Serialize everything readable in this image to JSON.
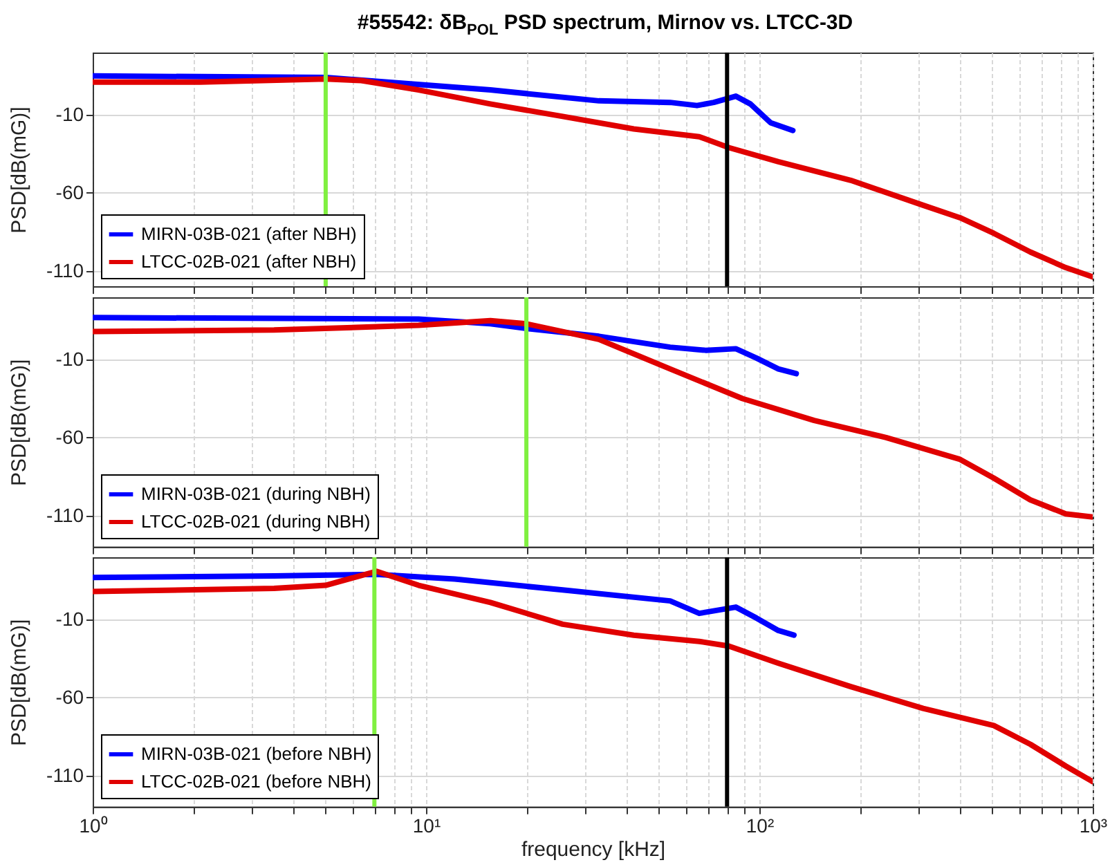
{
  "chart_data": [
    {
      "type": "line",
      "title": "#55542: δB$_{POL}$ PSD spectrum, Mirnov vs. LTCC-3D",
      "ylabel": "PSD[dB(mG)]",
      "log": "x",
      "xlim": [
        1,
        1000
      ],
      "ylim": [
        -120,
        30
      ],
      "yticks": [
        -110,
        -60,
        -10
      ],
      "xticks": [
        {
          "value": 1,
          "label": null
        },
        {
          "value": 2,
          "label": null
        },
        {
          "value": 3,
          "label": null
        },
        {
          "value": 4,
          "label": null
        },
        {
          "value": 5,
          "label": null
        },
        {
          "value": 6,
          "label": null
        },
        {
          "value": 7,
          "label": null
        },
        {
          "value": 8,
          "label": null
        },
        {
          "value": 9,
          "label": null
        },
        {
          "value": 10,
          "label": null
        },
        {
          "value": 20,
          "label": null
        },
        {
          "value": 30,
          "label": null
        },
        {
          "value": 40,
          "label": null
        },
        {
          "value": 50,
          "label": null
        },
        {
          "value": 60,
          "label": null
        },
        {
          "value": 70,
          "label": null
        },
        {
          "value": 80,
          "label": null
        },
        {
          "value": 90,
          "label": null
        },
        {
          "value": 100,
          "label": null
        },
        {
          "value": 200,
          "label": null
        },
        {
          "value": 300,
          "label": null
        },
        {
          "value": 400,
          "label": null
        },
        {
          "value": 500,
          "label": null
        },
        {
          "value": 600,
          "label": null
        },
        {
          "value": 700,
          "label": null
        },
        {
          "value": 800,
          "label": null
        },
        {
          "value": 900,
          "label": null
        },
        {
          "value": 1000,
          "label": null
        }
      ],
      "tick_labels": "y",
      "grid": true,
      "legend": "bottom left",
      "series": [
        {
          "name": "MIRN-03B-021 (after NBH)",
          "color": "#0000ff",
          "x": [
            1,
            5,
            15.6,
            33,
            54,
            65,
            73,
            85,
            94,
            108,
            126
          ],
          "values": [
            15,
            14,
            6,
            -1,
            -2,
            -4,
            -2,
            2,
            -3,
            -15,
            -20
          ]
        },
        {
          "name": "LTCC-02B-021 (after NBH)",
          "color": "#e00000",
          "x": [
            1,
            2.1,
            5,
            6.4,
            9.5,
            15.6,
            25.7,
            42,
            66,
            81,
            114,
            188,
            310,
            400,
            505,
            650,
            830,
            1000
          ],
          "values": [
            11,
            11,
            13,
            12,
            6,
            -3,
            -11,
            -19,
            -24,
            -31,
            -40,
            -52,
            -68,
            -76,
            -86,
            -98,
            -108,
            -114
          ]
        }
      ],
      "ref_lines": [
        {
          "axis": "x",
          "value": 5,
          "color": "#80f040"
        },
        {
          "axis": "x",
          "value": 80,
          "color": "#000000"
        }
      ]
    },
    {
      "type": "line",
      "ylabel": "PSD[dB(mG)]",
      "log": "x",
      "xlim": [
        1,
        1000
      ],
      "ylim": [
        -130,
        30
      ],
      "yticks": [
        -110,
        -60,
        -10
      ],
      "xticks": [
        {
          "value": 1,
          "label": null
        },
        {
          "value": 2,
          "label": null
        },
        {
          "value": 3,
          "label": null
        },
        {
          "value": 4,
          "label": null
        },
        {
          "value": 5,
          "label": null
        },
        {
          "value": 6,
          "label": null
        },
        {
          "value": 7,
          "label": null
        },
        {
          "value": 8,
          "label": null
        },
        {
          "value": 9,
          "label": null
        },
        {
          "value": 10,
          "label": null
        },
        {
          "value": 20,
          "label": null
        },
        {
          "value": 30,
          "label": null
        },
        {
          "value": 40,
          "label": null
        },
        {
          "value": 50,
          "label": null
        },
        {
          "value": 60,
          "label": null
        },
        {
          "value": 70,
          "label": null
        },
        {
          "value": 80,
          "label": null
        },
        {
          "value": 90,
          "label": null
        },
        {
          "value": 100,
          "label": null
        },
        {
          "value": 200,
          "label": null
        },
        {
          "value": 300,
          "label": null
        },
        {
          "value": 400,
          "label": null
        },
        {
          "value": 500,
          "label": null
        },
        {
          "value": 600,
          "label": null
        },
        {
          "value": 700,
          "label": null
        },
        {
          "value": 800,
          "label": null
        },
        {
          "value": 900,
          "label": null
        },
        {
          "value": 1000,
          "label": null
        }
      ],
      "tick_labels": "y",
      "grid": true,
      "legend": "bottom left",
      "series": [
        {
          "name": "MIRN-03B-021 (during NBH)",
          "color": "#0000ff",
          "x": [
            1,
            9.5,
            15.6,
            20,
            33,
            54,
            69,
            85,
            98,
            114,
            129
          ],
          "values": [
            17,
            16,
            13,
            10,
            5,
            -2,
            -4,
            -3,
            -9,
            -16,
            -19
          ]
        },
        {
          "name": "LTCC-02B-021 (during NBH)",
          "color": "#e00000",
          "x": [
            1,
            3.5,
            9.5,
            15.6,
            20,
            33,
            54,
            89,
            146,
            240,
            400,
            505,
            650,
            830,
            1000
          ],
          "values": [
            8,
            9,
            12,
            15,
            13,
            3,
            -16,
            -35,
            -49,
            -60,
            -74,
            -86,
            -100,
            -109,
            -111
          ]
        }
      ],
      "ref_lines": [
        {
          "axis": "x",
          "value": 20,
          "color": "#80f040"
        }
      ]
    },
    {
      "type": "line",
      "xlabel": "frequency [kHz]",
      "ylabel": "PSD[dB(mG)]",
      "log": "x",
      "xlim": [
        1,
        1000
      ],
      "ylim": [
        -130,
        30
      ],
      "yticks": [
        -110,
        -60,
        -10
      ],
      "xticks": [
        {
          "value": 1,
          "label": "10⁰"
        },
        {
          "value": 2,
          "label": null
        },
        {
          "value": 3,
          "label": null
        },
        {
          "value": 4,
          "label": null
        },
        {
          "value": 5,
          "label": null
        },
        {
          "value": 6,
          "label": null
        },
        {
          "value": 7,
          "label": null
        },
        {
          "value": 8,
          "label": null
        },
        {
          "value": 9,
          "label": null
        },
        {
          "value": 10,
          "label": "10¹"
        },
        {
          "value": 20,
          "label": null
        },
        {
          "value": 30,
          "label": null
        },
        {
          "value": 40,
          "label": null
        },
        {
          "value": 50,
          "label": null
        },
        {
          "value": 60,
          "label": null
        },
        {
          "value": 70,
          "label": null
        },
        {
          "value": 80,
          "label": null
        },
        {
          "value": 90,
          "label": null
        },
        {
          "value": 100,
          "label": "10²"
        },
        {
          "value": 200,
          "label": null
        },
        {
          "value": 300,
          "label": null
        },
        {
          "value": 400,
          "label": null
        },
        {
          "value": 500,
          "label": null
        },
        {
          "value": 600,
          "label": null
        },
        {
          "value": 700,
          "label": null
        },
        {
          "value": 800,
          "label": null
        },
        {
          "value": 900,
          "label": null
        },
        {
          "value": 1000,
          "label": "10³"
        }
      ],
      "grid": true,
      "legend": "bottom left",
      "series": [
        {
          "name": "MIRN-03B-021 (before NBH)",
          "color": "#0000ff",
          "x": [
            1,
            3.5,
            7.1,
            12.2,
            25.7,
            54,
            66,
            85,
            98,
            114,
            127
          ],
          "values": [
            17,
            18,
            19,
            16,
            9,
            2,
            -6,
            -2,
            -9,
            -17,
            -20
          ]
        },
        {
          "name": "LTCC-02B-021 (before NBH)",
          "color": "#e00000",
          "x": [
            1,
            3.5,
            5,
            7.1,
            9.5,
            15.6,
            25.7,
            42,
            66,
            81,
            114,
            188,
            310,
            505,
            650,
            830,
            1000
          ],
          "values": [
            8,
            10,
            12,
            21,
            12,
            1,
            -13,
            -20,
            -24,
            -27,
            -38,
            -53,
            -67,
            -78,
            -90,
            -104,
            -114
          ]
        }
      ],
      "ref_lines": [
        {
          "axis": "x",
          "value": 7,
          "color": "#80f040"
        },
        {
          "axis": "x",
          "value": 80,
          "color": "#000000"
        }
      ]
    }
  ]
}
